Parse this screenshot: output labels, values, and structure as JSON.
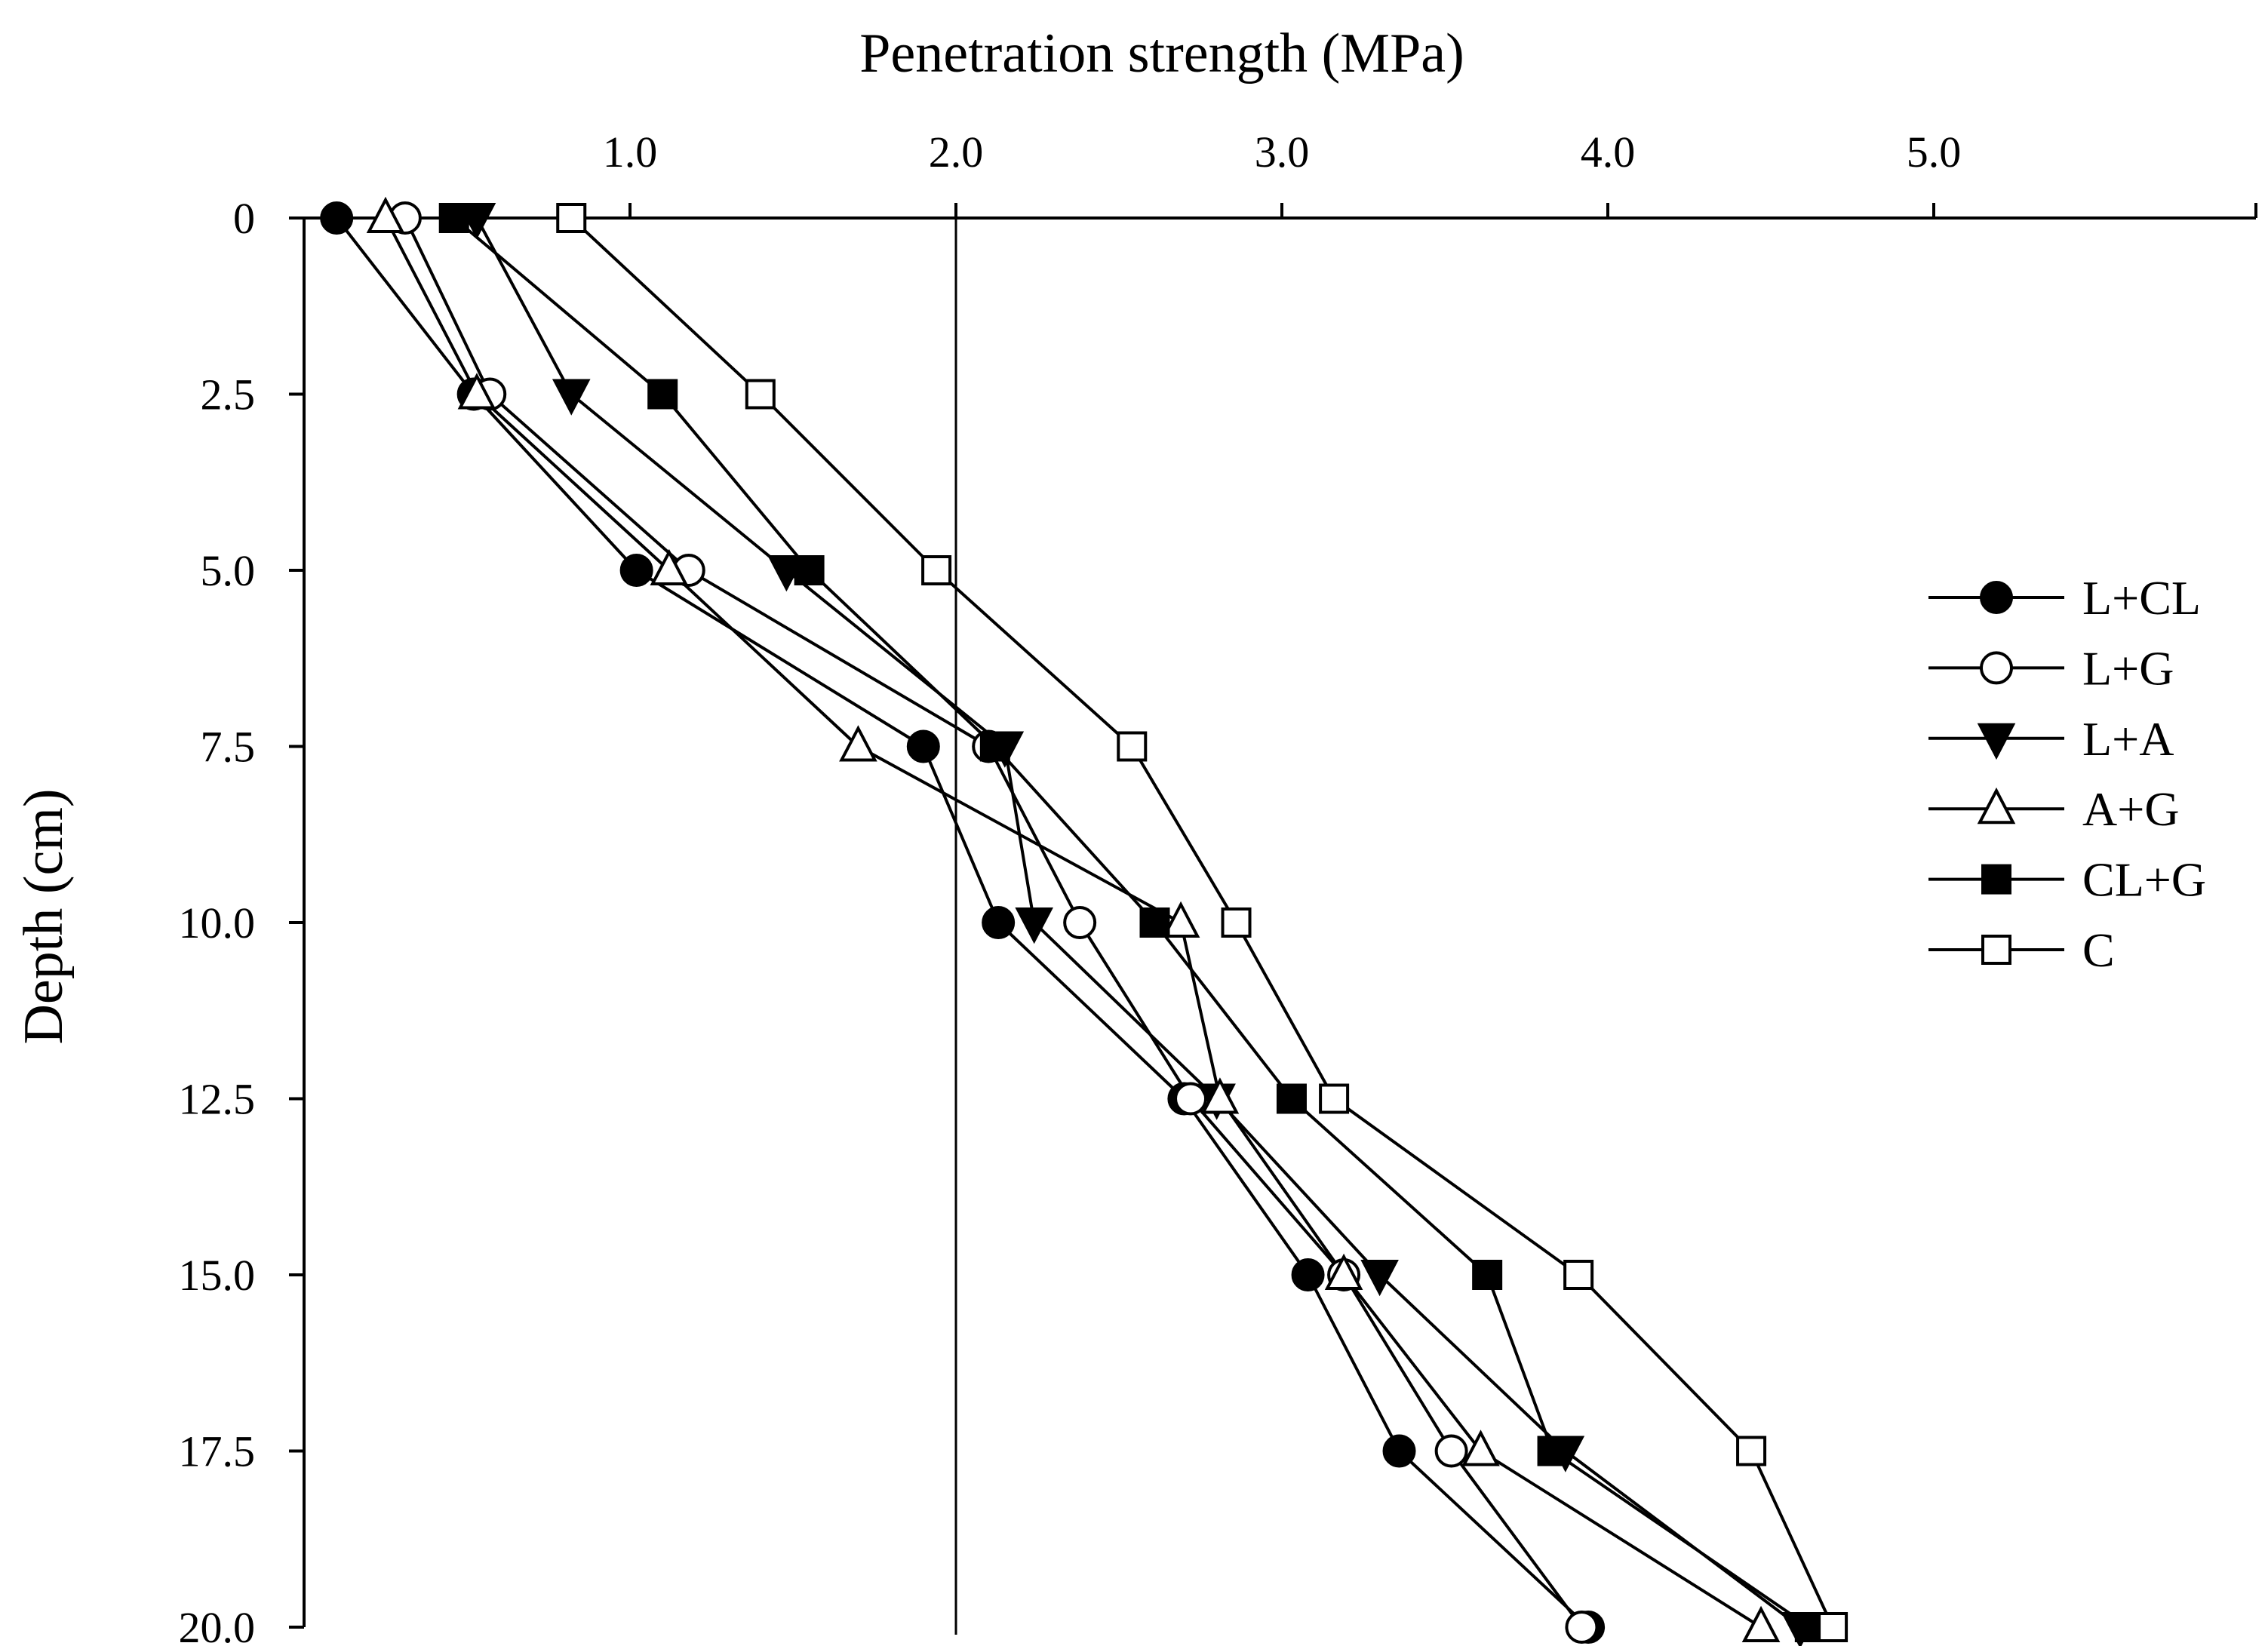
{
  "chart_data": {
    "type": "line",
    "xlabel": "Penetration strength (MPa)",
    "ylabel": "Depth (cm)",
    "xlim": [
      0,
      6.0
    ],
    "ylim": [
      0,
      20.0
    ],
    "x_axis_position": "top",
    "y_inverted": true,
    "grid": false,
    "reference_line_x": 2.0,
    "x_ticks": [
      1.0,
      2.0,
      3.0,
      4.0,
      5.0
    ],
    "x_tick_labels": [
      "1.0",
      "2.0",
      "3.0",
      "4.0",
      "5.0"
    ],
    "y_ticks": [
      0,
      2.5,
      5.0,
      7.5,
      10.0,
      12.5,
      15.0,
      17.5,
      20.0
    ],
    "y_tick_labels": [
      "0",
      "2.5",
      "5.0",
      "7.5",
      "10.0",
      "12.5",
      "15.0",
      "17.5",
      "20.0"
    ],
    "legend_position": "right",
    "depths": [
      0,
      2.5,
      5.0,
      7.5,
      10.0,
      12.5,
      15.0,
      17.5,
      20.0
    ],
    "series": [
      {
        "name": "L+CL",
        "marker": "circle-filled",
        "values": [
          0.1,
          0.52,
          1.02,
          1.9,
          2.13,
          2.7,
          3.08,
          3.36,
          3.94
        ]
      },
      {
        "name": "L+G",
        "marker": "circle-open",
        "values": [
          0.31,
          0.57,
          1.18,
          2.1,
          2.38,
          2.72,
          3.19,
          3.52,
          3.92
        ]
      },
      {
        "name": "L+A",
        "marker": "triangle-down-filled",
        "values": [
          0.53,
          0.82,
          1.48,
          2.15,
          2.24,
          2.8,
          3.3,
          3.87,
          4.59
        ]
      },
      {
        "name": "A+G",
        "marker": "triangle-up-open",
        "values": [
          0.25,
          0.53,
          1.12,
          1.7,
          2.69,
          2.81,
          3.19,
          3.61,
          4.47
        ]
      },
      {
        "name": "CL+G",
        "marker": "square-filled",
        "values": [
          0.46,
          1.1,
          1.55,
          2.12,
          2.61,
          3.03,
          3.63,
          3.83,
          4.62
        ]
      },
      {
        "name": "C",
        "marker": "square-open",
        "values": [
          0.82,
          1.4,
          1.94,
          2.54,
          2.86,
          3.16,
          3.91,
          4.44,
          4.69
        ]
      }
    ]
  }
}
